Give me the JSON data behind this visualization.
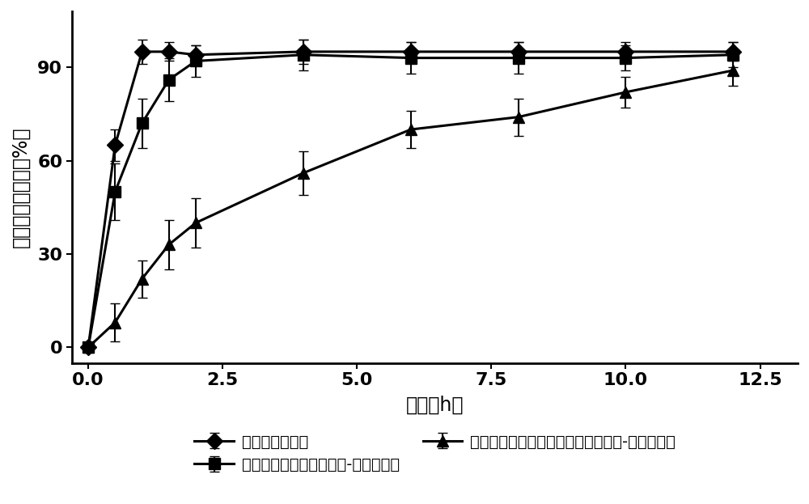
{
  "series1_label": "氧化苦参碱胶囊",
  "series2_label": "载氧化苦参碱的海藻酸钓-壳聚糖微丸",
  "series3_label": "载氧化苦参碱固体分散体的海藻酸钓-壳聚糖微丸",
  "series1_x": [
    0,
    0.5,
    1.0,
    1.5,
    2.0,
    4.0,
    6.0,
    8.0,
    10.0,
    12.0
  ],
  "series1_y": [
    0,
    65,
    95,
    95,
    94,
    95,
    95,
    95,
    95,
    95
  ],
  "series1_yerr": [
    0,
    5,
    4,
    3,
    3,
    4,
    3,
    3,
    3,
    3
  ],
  "series2_x": [
    0,
    0.5,
    1.0,
    1.5,
    2.0,
    4.0,
    6.0,
    8.0,
    10.0,
    12.0
  ],
  "series2_y": [
    0,
    50,
    72,
    86,
    92,
    94,
    93,
    93,
    93,
    94
  ],
  "series2_yerr": [
    0,
    9,
    8,
    7,
    5,
    5,
    5,
    5,
    4,
    4
  ],
  "series3_x": [
    0,
    0.5,
    1.0,
    1.5,
    2.0,
    4.0,
    6.0,
    8.0,
    10.0,
    12.0
  ],
  "series3_y": [
    0,
    8,
    22,
    33,
    40,
    56,
    70,
    74,
    82,
    89
  ],
  "series3_yerr": [
    0,
    6,
    6,
    8,
    8,
    7,
    6,
    6,
    5,
    5
  ],
  "xlabel": "时间（h）",
  "ylabel": "累积释放百分数（%）",
  "xlim": [
    -0.3,
    13.2
  ],
  "ylim": [
    -5,
    108
  ],
  "xticks": [
    0,
    2.5,
    5,
    7.5,
    10,
    12.5
  ],
  "yticks": [
    0,
    30,
    60,
    90
  ],
  "marker1": "D",
  "marker2": "s",
  "marker3": "^",
  "linewidth": 2.2,
  "markersize": 10,
  "capsize": 4,
  "elinewidth": 1.5,
  "color": "#000000",
  "bg_color": "#ffffff",
  "legend_fontsize": 14,
  "axis_fontsize": 17,
  "tick_fontsize": 16
}
